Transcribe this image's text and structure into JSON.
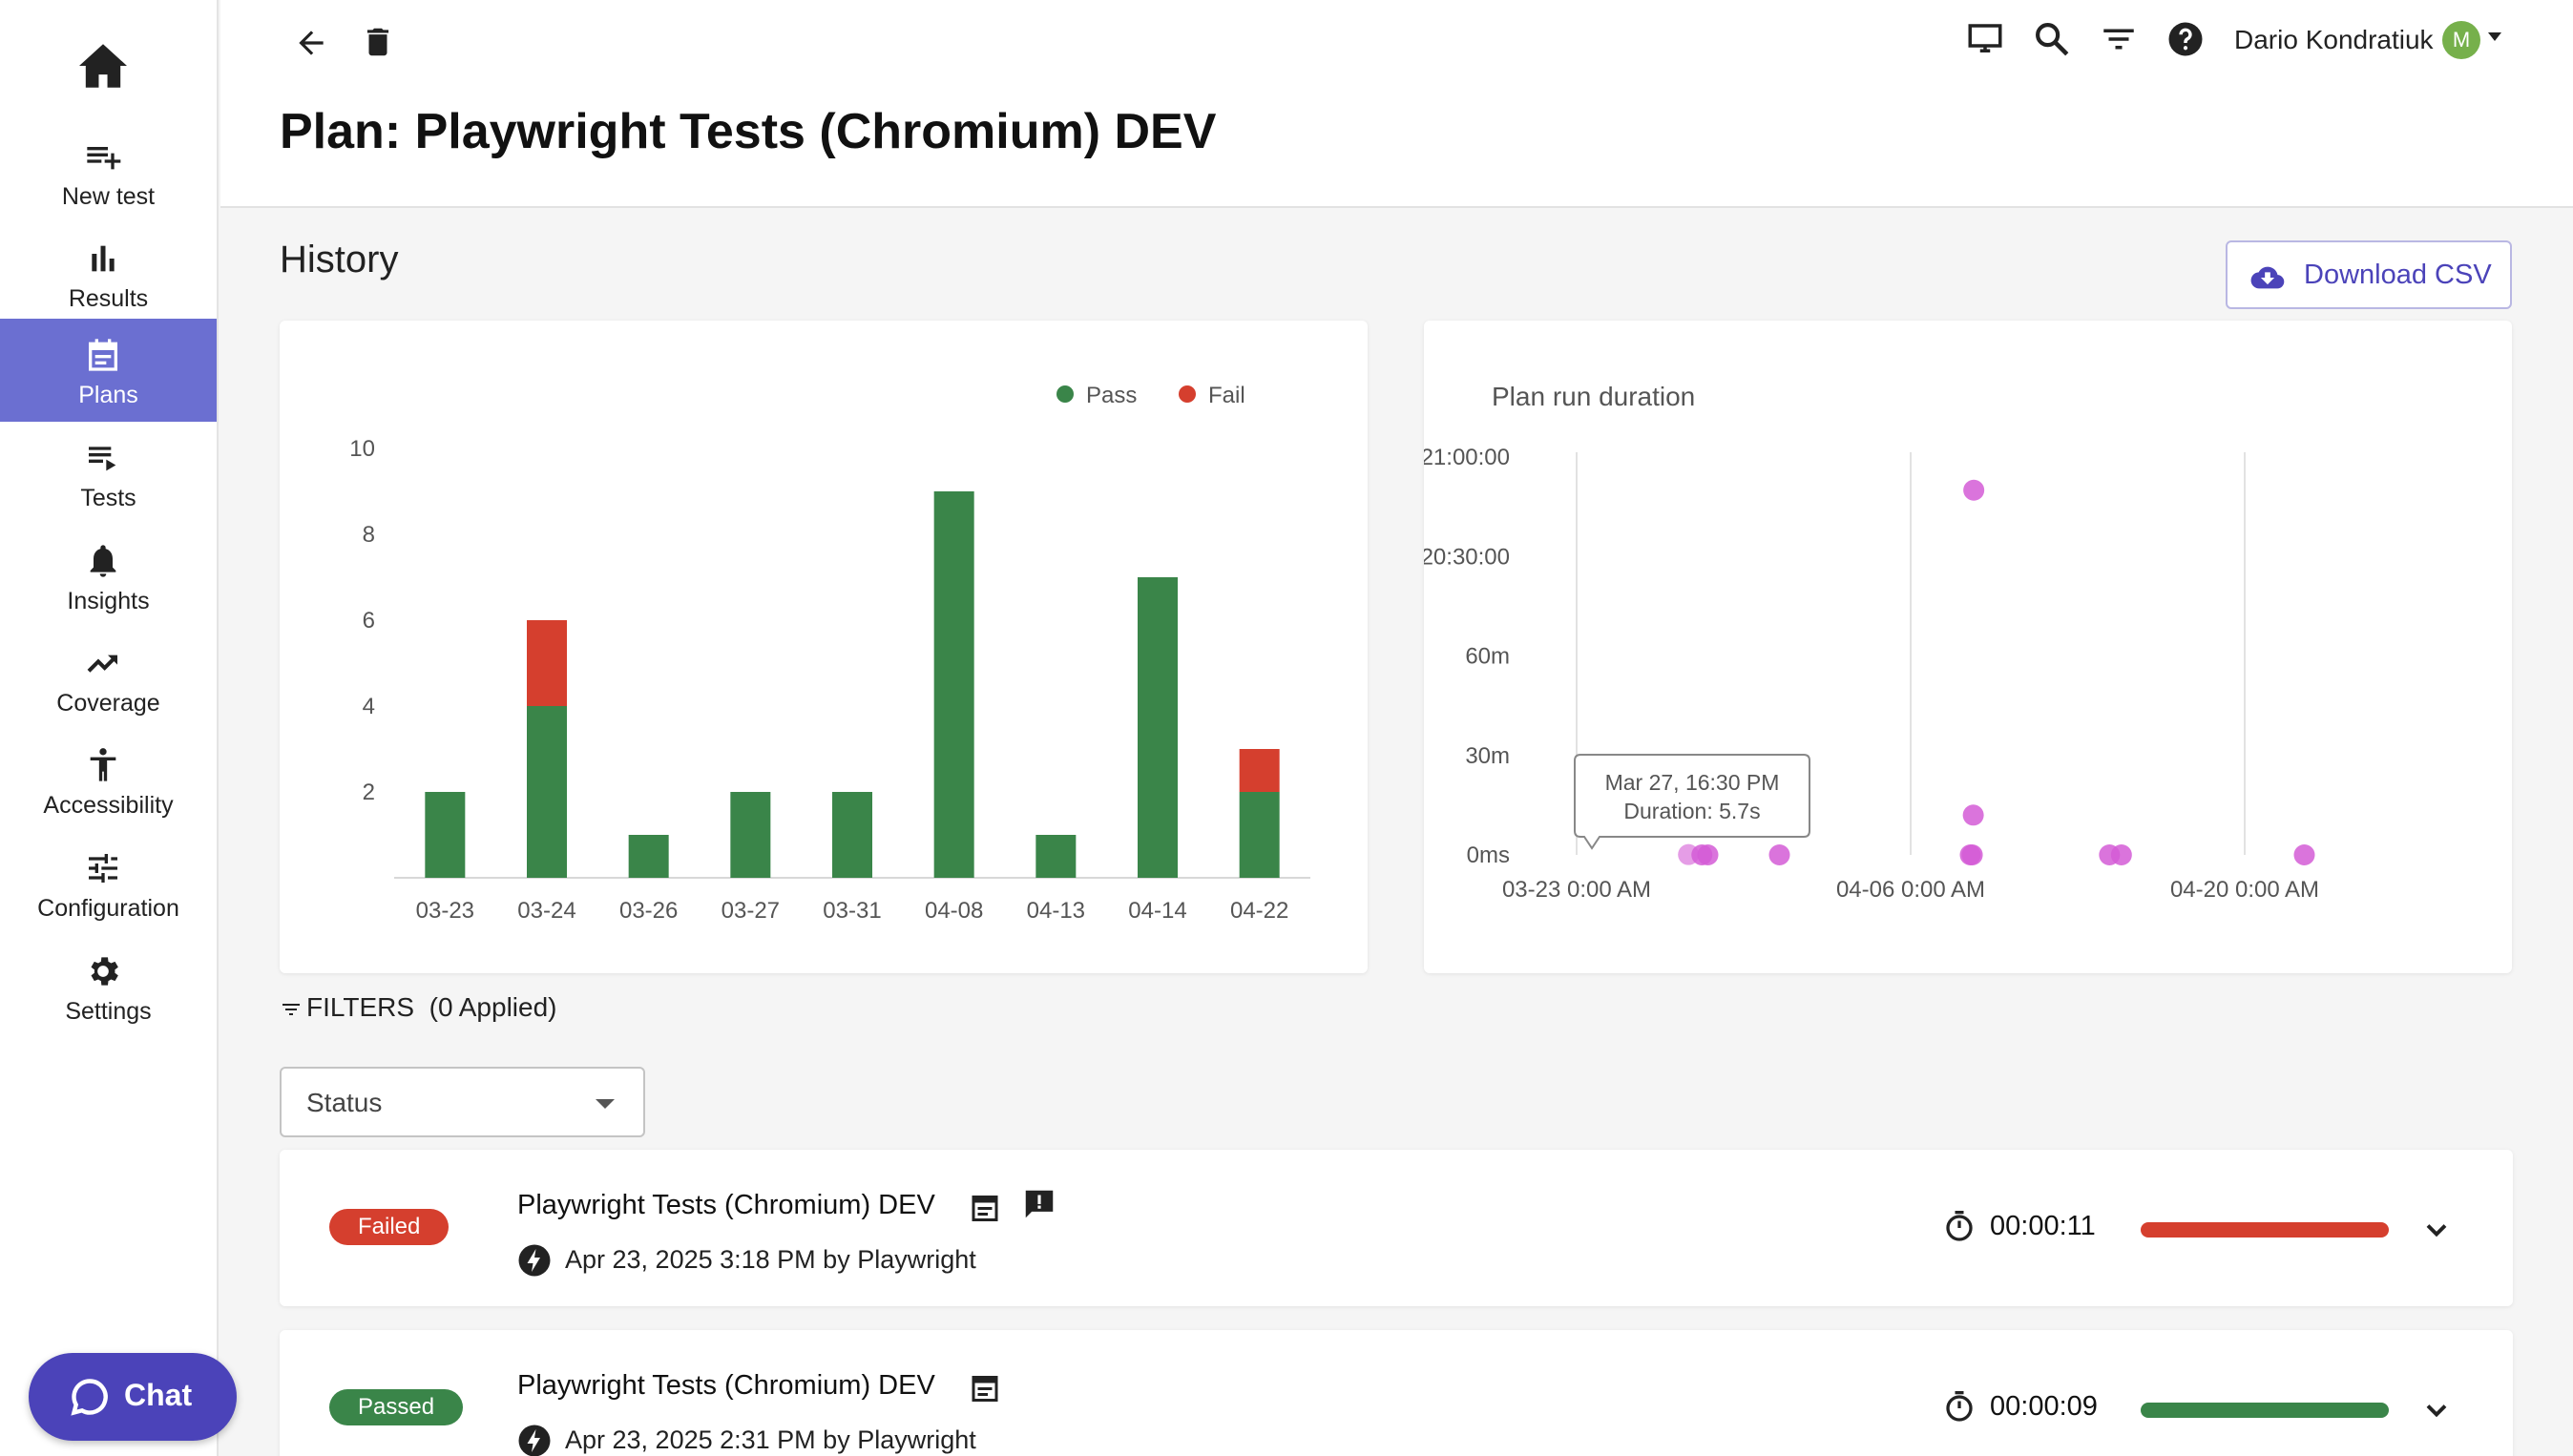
{
  "sidebar": {
    "items": [
      {
        "label": "New test"
      },
      {
        "label": "Results"
      },
      {
        "label": "Plans"
      },
      {
        "label": "Tests"
      },
      {
        "label": "Insights"
      },
      {
        "label": "Coverage"
      },
      {
        "label": "Accessibility"
      },
      {
        "label": "Configuration"
      },
      {
        "label": "Settings"
      }
    ],
    "active": "Plans",
    "chat_label": "Chat"
  },
  "header": {
    "title": "Plan: Playwright Tests (Chromium) DEV",
    "user_name": "Dario Kondratiuk",
    "avatar_initial": "M"
  },
  "history": {
    "title": "History",
    "download_label": "Download CSV"
  },
  "chart_data": [
    {
      "type": "bar",
      "stacked": true,
      "categories": [
        "03-23",
        "03-24",
        "03-26",
        "03-27",
        "03-31",
        "04-08",
        "04-13",
        "04-14",
        "04-22"
      ],
      "series": [
        {
          "name": "Pass",
          "color": "#3a8549",
          "values": [
            2,
            4,
            1,
            2,
            2,
            9,
            1,
            7,
            2
          ]
        },
        {
          "name": "Fail",
          "color": "#d53f2e",
          "values": [
            0,
            2,
            0,
            0,
            0,
            0,
            0,
            0,
            1
          ]
        }
      ],
      "yticks": [
        2,
        4,
        6,
        8,
        10
      ],
      "ylim": [
        0,
        10
      ],
      "legend": "top-right",
      "title": "",
      "xlabel": "",
      "ylabel": ""
    },
    {
      "type": "scatter",
      "title": "Plan run duration",
      "xticks": [
        "03-23 0:00 AM",
        "04-06 0:00 AM",
        "04-20 0:00 AM"
      ],
      "yticks": [
        "0ms",
        "30m",
        "60m",
        "20:30:00",
        "21:00:00"
      ],
      "point_color": "#d35cd6",
      "points": [
        {
          "x": "03-27 16:30",
          "y": "5.7s"
        },
        {
          "x": "03-28 06:00",
          "y": "0ms"
        },
        {
          "x": "03-28 12:00",
          "y": "0ms"
        },
        {
          "x": "03-31 12:00",
          "y": "0ms"
        },
        {
          "x": "04-08 12:00",
          "y": "0ms"
        },
        {
          "x": "04-08 14:00",
          "y": "0ms"
        },
        {
          "x": "04-08 15:00",
          "y": "12m"
        },
        {
          "x": "04-08 15:30",
          "y": "20:50:00"
        },
        {
          "x": "04-14 08:00",
          "y": "0ms"
        },
        {
          "x": "04-14 20:00",
          "y": "0ms"
        },
        {
          "x": "04-22 12:00",
          "y": "0ms"
        }
      ],
      "tooltip": {
        "line1": "Mar 27, 16:30 PM",
        "line2": "Duration: 5.7s"
      },
      "grid": true
    }
  ],
  "filters": {
    "label": "FILTERS",
    "applied": "(0 Applied)",
    "status_placeholder": "Status"
  },
  "runs": [
    {
      "status": "Failed",
      "name": "Playwright Tests (Chromium) DEV",
      "meta": "Apr 23, 2025 3:18 PM by Playwright",
      "duration": "00:00:11",
      "color": "#d53f2e"
    },
    {
      "status": "Passed",
      "name": "Playwright Tests (Chromium) DEV",
      "meta": "Apr 23, 2025 2:31 PM by Playwright",
      "duration": "00:00:09",
      "color": "#3a8549"
    }
  ]
}
